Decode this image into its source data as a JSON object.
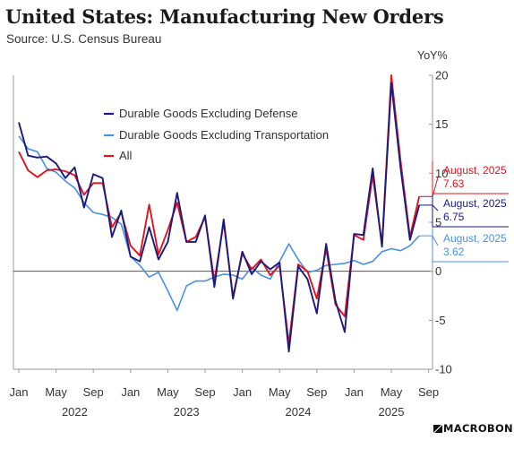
{
  "header": {
    "title": "United States: Manufacturing New Orders",
    "subtitle": "Source: U.S. Census Bureau"
  },
  "brand": {
    "name": "MACROBOND"
  },
  "colors": {
    "defense": "#1a1a80",
    "transport": "#4a90e2",
    "all": "#e0141e",
    "zero_line": "#555555",
    "axis": "#999999"
  },
  "chart_data": {
    "type": "line",
    "title": "United States: Manufacturing New Orders",
    "ylabel": "YoY%",
    "ylim": [
      -10,
      20
    ],
    "yticks": [
      -10,
      -5,
      0,
      5,
      10,
      15,
      20
    ],
    "x_tick_labels": [
      "Jan",
      "May",
      "Sep",
      "Jan",
      "May",
      "Sep",
      "Jan",
      "May",
      "Sep",
      "Jan",
      "May",
      "Sep"
    ],
    "x_tick_months": [
      "2022-01",
      "2022-05",
      "2022-09",
      "2023-01",
      "2023-05",
      "2023-09",
      "2024-01",
      "2024-05",
      "2024-09",
      "2025-01",
      "2025-05",
      "2025-09"
    ],
    "x_years": [
      {
        "label": "2022",
        "center": "2022-07"
      },
      {
        "label": "2023",
        "center": "2023-07"
      },
      {
        "label": "2024",
        "center": "2024-07"
      },
      {
        "label": "2025",
        "center": "2025-05"
      }
    ],
    "x": [
      "2022-01",
      "2022-02",
      "2022-03",
      "2022-04",
      "2022-05",
      "2022-06",
      "2022-07",
      "2022-08",
      "2022-09",
      "2022-10",
      "2022-11",
      "2022-12",
      "2023-01",
      "2023-02",
      "2023-03",
      "2023-04",
      "2023-05",
      "2023-06",
      "2023-07",
      "2023-08",
      "2023-09",
      "2023-10",
      "2023-11",
      "2023-12",
      "2024-01",
      "2024-02",
      "2024-03",
      "2024-04",
      "2024-05",
      "2024-06",
      "2024-07",
      "2024-08",
      "2024-09",
      "2024-10",
      "2024-11",
      "2024-12",
      "2025-01",
      "2025-02",
      "2025-03",
      "2025-04",
      "2025-05",
      "2025-06",
      "2025-07",
      "2025-08"
    ],
    "legend": [
      "Durable Goods Excluding Defense",
      "Durable Goods Excluding Transportation",
      "All"
    ],
    "series": [
      {
        "name": "Durable Goods Excluding Defense",
        "color": "#1a1a80",
        "values": [
          15.2,
          11.8,
          11.6,
          11.7,
          11.0,
          9.5,
          10.6,
          6.5,
          9.9,
          9.5,
          3.5,
          6.2,
          1.5,
          1.0,
          4.5,
          1.2,
          3.0,
          8.0,
          3.0,
          3.0,
          5.7,
          -1.6,
          5.3,
          -2.8,
          2.0,
          -0.3,
          1.0,
          0.2,
          0.9,
          -8.2,
          0.5,
          -0.8,
          -4.3,
          2.8,
          -3.0,
          -6.2,
          3.8,
          3.7,
          10.5,
          2.5,
          19.2,
          10.5,
          3.2,
          6.75
        ]
      },
      {
        "name": "Durable Goods Excluding Transportation",
        "color": "#4a90e2",
        "values": [
          13.8,
          12.5,
          12.2,
          10.5,
          10.1,
          9.2,
          8.5,
          7.0,
          6.0,
          5.8,
          5.5,
          4.8,
          1.5,
          0.6,
          -0.6,
          -0.1,
          -2.0,
          -4.0,
          -1.5,
          -1.0,
          -1.0,
          -0.6,
          -0.3,
          -0.4,
          -0.8,
          0.4,
          -0.4,
          -0.8,
          1.0,
          2.8,
          1.2,
          -0.1,
          0.1,
          0.6,
          0.7,
          0.8,
          1.1,
          0.7,
          1.0,
          2.0,
          2.3,
          2.1,
          2.6,
          3.62
        ]
      },
      {
        "name": "All",
        "color": "#e0141e",
        "values": [
          12.2,
          10.3,
          9.6,
          10.3,
          10.4,
          10.2,
          9.8,
          7.8,
          9.0,
          9.0,
          4.5,
          6.0,
          2.6,
          1.6,
          6.8,
          1.7,
          4.2,
          7.0,
          3.0,
          3.5,
          5.5,
          -1.0,
          5.0,
          -2.6,
          1.8,
          0.2,
          1.2,
          -0.4,
          0.6,
          -7.4,
          0.7,
          0.0,
          -2.8,
          2.3,
          -3.4,
          -4.6,
          3.7,
          3.2,
          9.8,
          2.7,
          20.0,
          11.2,
          3.5,
          7.63
        ]
      }
    ],
    "end_labels": [
      {
        "series": "All",
        "date": "August, 2025",
        "value": "7.63",
        "color": "#e0141e"
      },
      {
        "series": "Durable Goods Excluding Defense",
        "date": "August, 2025",
        "value": "6.75",
        "color": "#1a1a80"
      },
      {
        "series": "Durable Goods Excluding Transportation",
        "date": "August, 2025",
        "value": "3.62",
        "color": "#4a90e2"
      }
    ],
    "grid": false,
    "legend_position": "top-left"
  }
}
